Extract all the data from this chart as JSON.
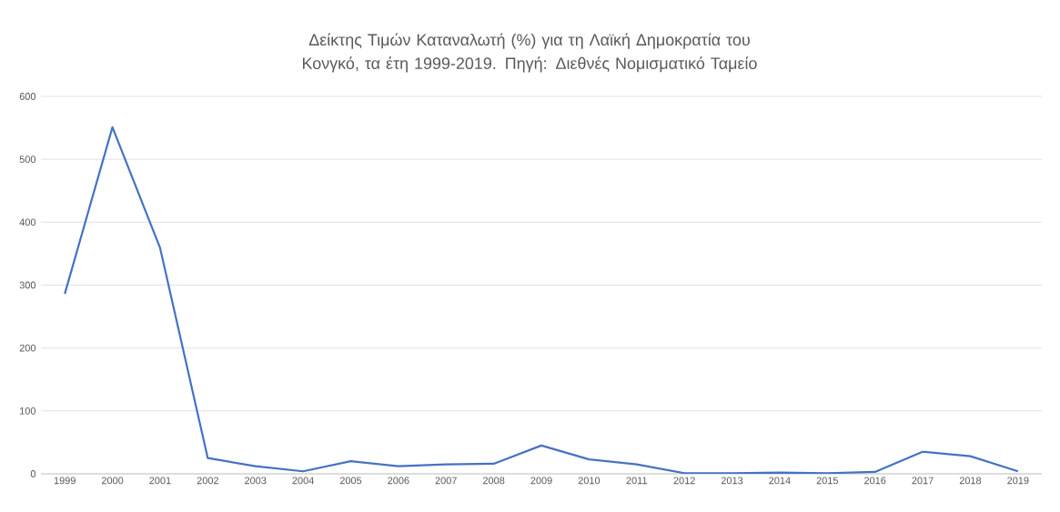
{
  "chart_data": {
    "type": "line",
    "title": "Δείκτης Τιμών Καταναλωτή (%) για τη Λαϊκή Δημοκρατία του Κονγκό, τα έτη 1999-2019. Πηγή: Διεθνές Νομισματικό Ταμείο",
    "categories": [
      "1999",
      "2000",
      "2001",
      "2002",
      "2003",
      "2004",
      "2005",
      "2006",
      "2007",
      "2008",
      "2009",
      "2010",
      "2011",
      "2012",
      "2013",
      "2014",
      "2015",
      "2016",
      "2017",
      "2018",
      "2019"
    ],
    "values": [
      286,
      551,
      359,
      25,
      12,
      4,
      20,
      12,
      15,
      16,
      45,
      23,
      15,
      1,
      1,
      2,
      1,
      3,
      35,
      28,
      4
    ],
    "color": "#4472c4",
    "ylim": [
      0,
      600
    ],
    "yticks": [
      0,
      100,
      200,
      300,
      400,
      500,
      600
    ],
    "grid": "y",
    "marker": "none",
    "line_style": "solid"
  }
}
